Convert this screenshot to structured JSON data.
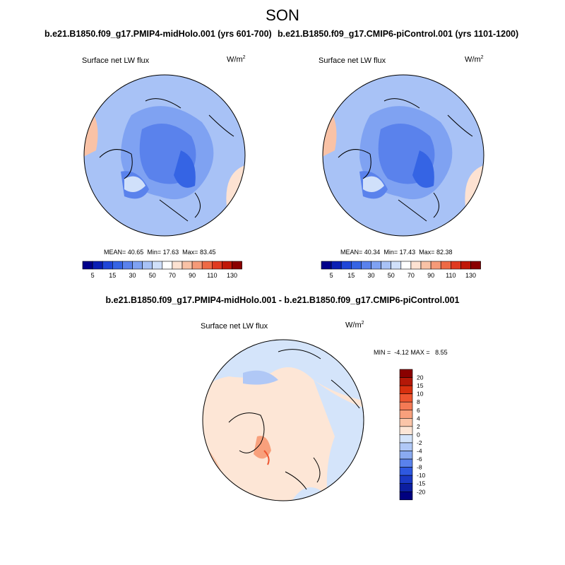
{
  "season": "SON",
  "panels": [
    {
      "case_title": "b.e21.B1850.f09_g17.PMIP4-midHolo.001 (yrs 601-700)",
      "variable": "Surface net LW flux",
      "units_base": "W/m",
      "units_exp": "2",
      "stats": {
        "mean_label": "MEAN=",
        "mean": "40.65",
        "min_label": "Min=",
        "min": "17.63",
        "max_label": "Max=",
        "max": "83.45"
      }
    },
    {
      "case_title": "b.e21.B1850.f09_g17.CMIP6-piControl.001 (yrs 1101-1200)",
      "variable": "Surface net LW flux",
      "units_base": "W/m",
      "units_exp": "2",
      "stats": {
        "mean_label": "MEAN=",
        "mean": "40.34",
        "min_label": "Min=",
        "min": "17.43",
        "max_label": "Max=",
        "max": "82.38"
      }
    }
  ],
  "diff": {
    "title": "b.e21.B1850.f09_g17.PMIP4-midHolo.001 - b.e21.B1850.f09_g17.CMIP6-piControl.001",
    "variable": "Surface net LW flux",
    "units_base": "W/m",
    "units_exp": "2",
    "stats": {
      "min_label": "MIN =",
      "min": "-4.12",
      "max_label": "MAX =",
      "max": "8.55"
    }
  },
  "colorbar_main": {
    "colors": [
      "#00008a",
      "#0a1fb4",
      "#1f46d8",
      "#3564e4",
      "#5a82ec",
      "#7fa2f2",
      "#a8c2f6",
      "#d0e0fa",
      "#ffffff",
      "#fde2d2",
      "#f9c2a6",
      "#f59a78",
      "#ee6a45",
      "#e03a20",
      "#c01808",
      "#8a0000"
    ],
    "labels": [
      "5",
      "15",
      "30",
      "50",
      "70",
      "90",
      "110",
      "130"
    ]
  },
  "colorbar_diff": {
    "colors": [
      "#8a0000",
      "#b41808",
      "#d8300f",
      "#ee5530",
      "#f47a55",
      "#f8a07c",
      "#fbc5a8",
      "#fde6d6",
      "#d4e4fa",
      "#b0c8f6",
      "#8aaaf0",
      "#5a82ec",
      "#2e58e0",
      "#1a38c4",
      "#0c1ea0",
      "#000080"
    ],
    "labels": [
      "20",
      "15",
      "10",
      "8",
      "6",
      "4",
      "2",
      "0",
      "-2",
      "-4",
      "-6",
      "-8",
      "-10",
      "-15",
      "-20"
    ]
  }
}
